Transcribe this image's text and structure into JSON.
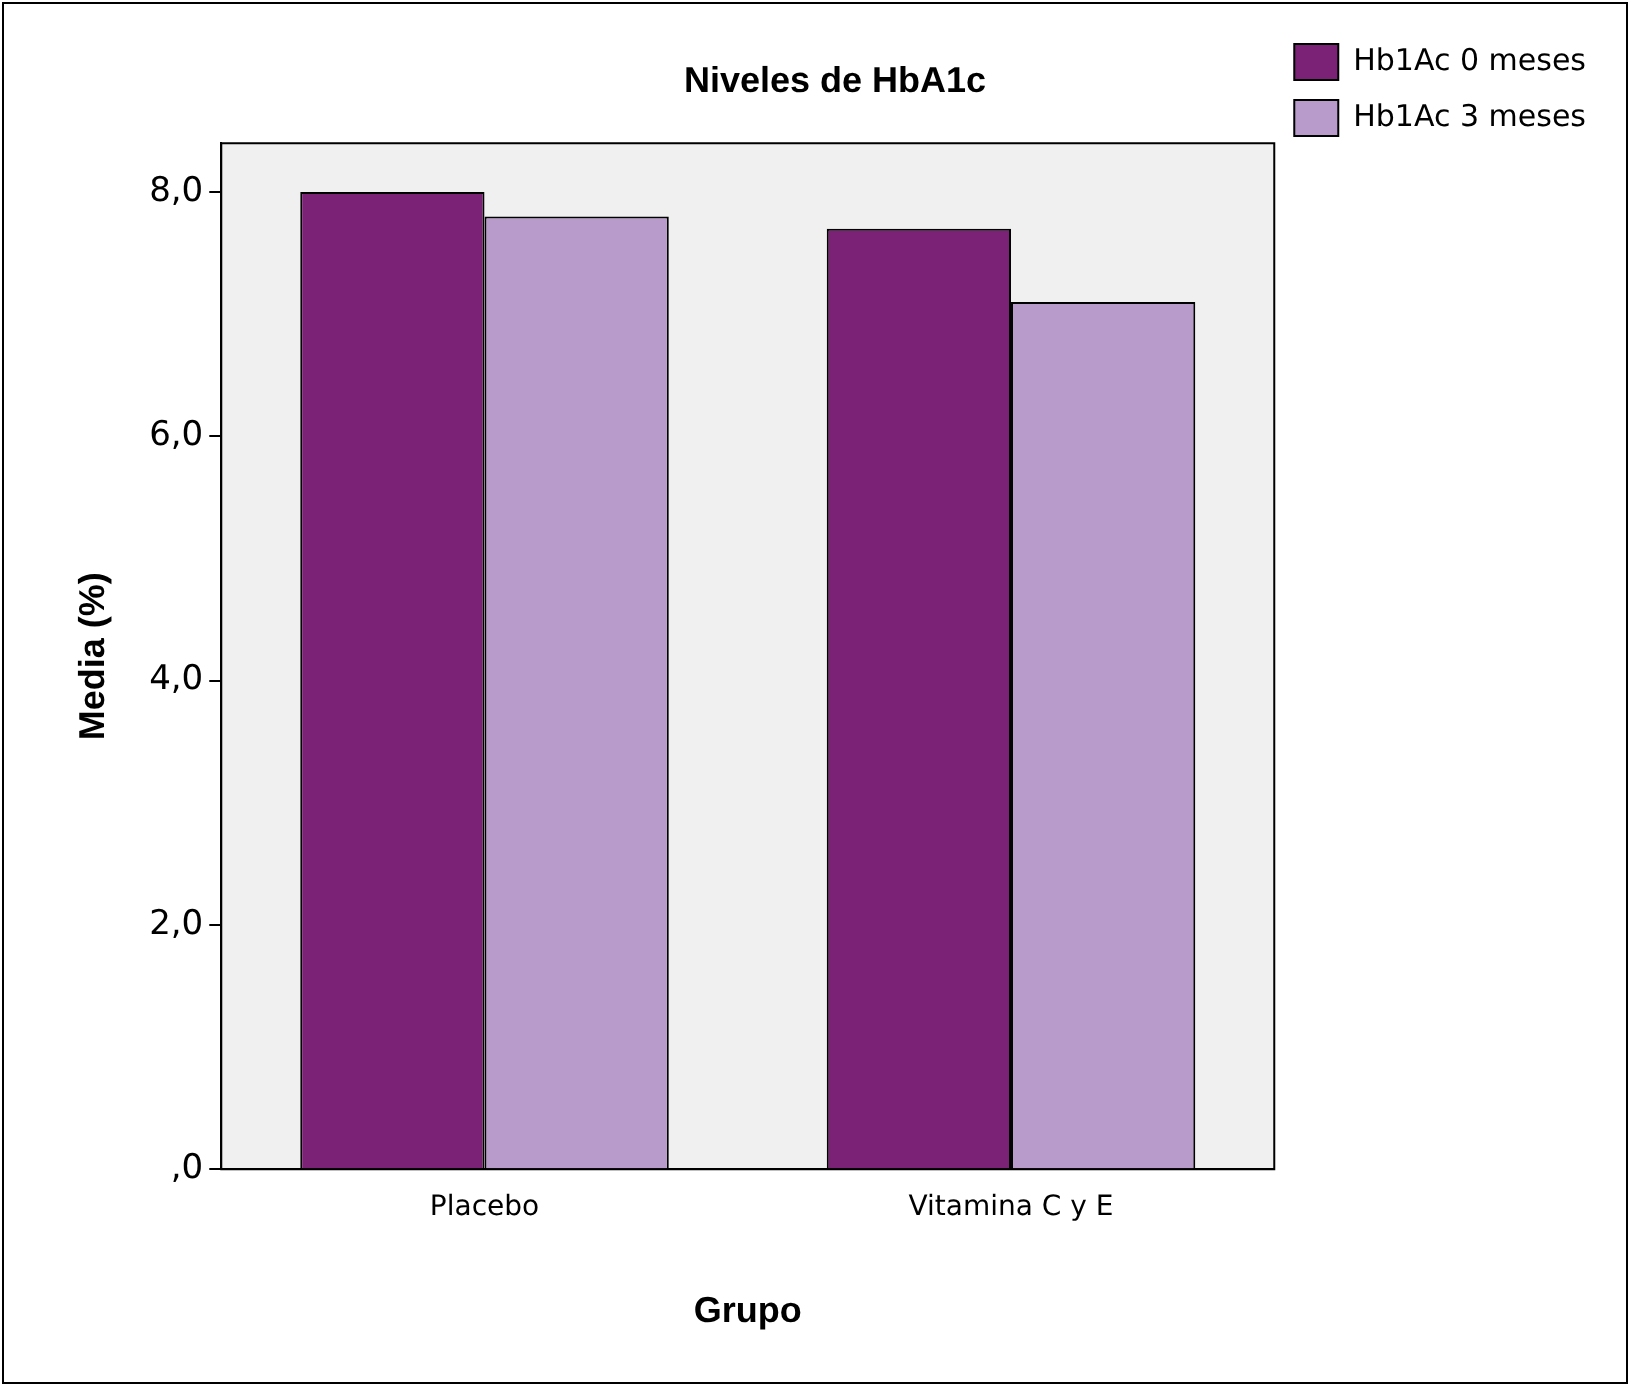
{
  "chart_data": {
    "type": "bar",
    "title": "Niveles de HbA1c",
    "xlabel": "Grupo",
    "ylabel": "Media (%)",
    "categories": [
      "Placebo",
      "Vitamina C y E"
    ],
    "series": [
      {
        "name": "Hb1Ac 0 meses",
        "color": "#7b2277",
        "values": [
          8.0,
          7.7
        ]
      },
      {
        "name": "Hb1Ac 3 meses",
        "color": "#b99bcb",
        "values": [
          7.8,
          7.1
        ]
      }
    ],
    "ylim": [
      0,
      8.4
    ],
    "yticks": [
      {
        "value": 0,
        "label": ",0"
      },
      {
        "value": 2,
        "label": "2,0"
      },
      {
        "value": 4,
        "label": "4,0"
      },
      {
        "value": 6,
        "label": "6,0"
      },
      {
        "value": 8,
        "label": "8,0"
      }
    ],
    "legend": "top right"
  }
}
